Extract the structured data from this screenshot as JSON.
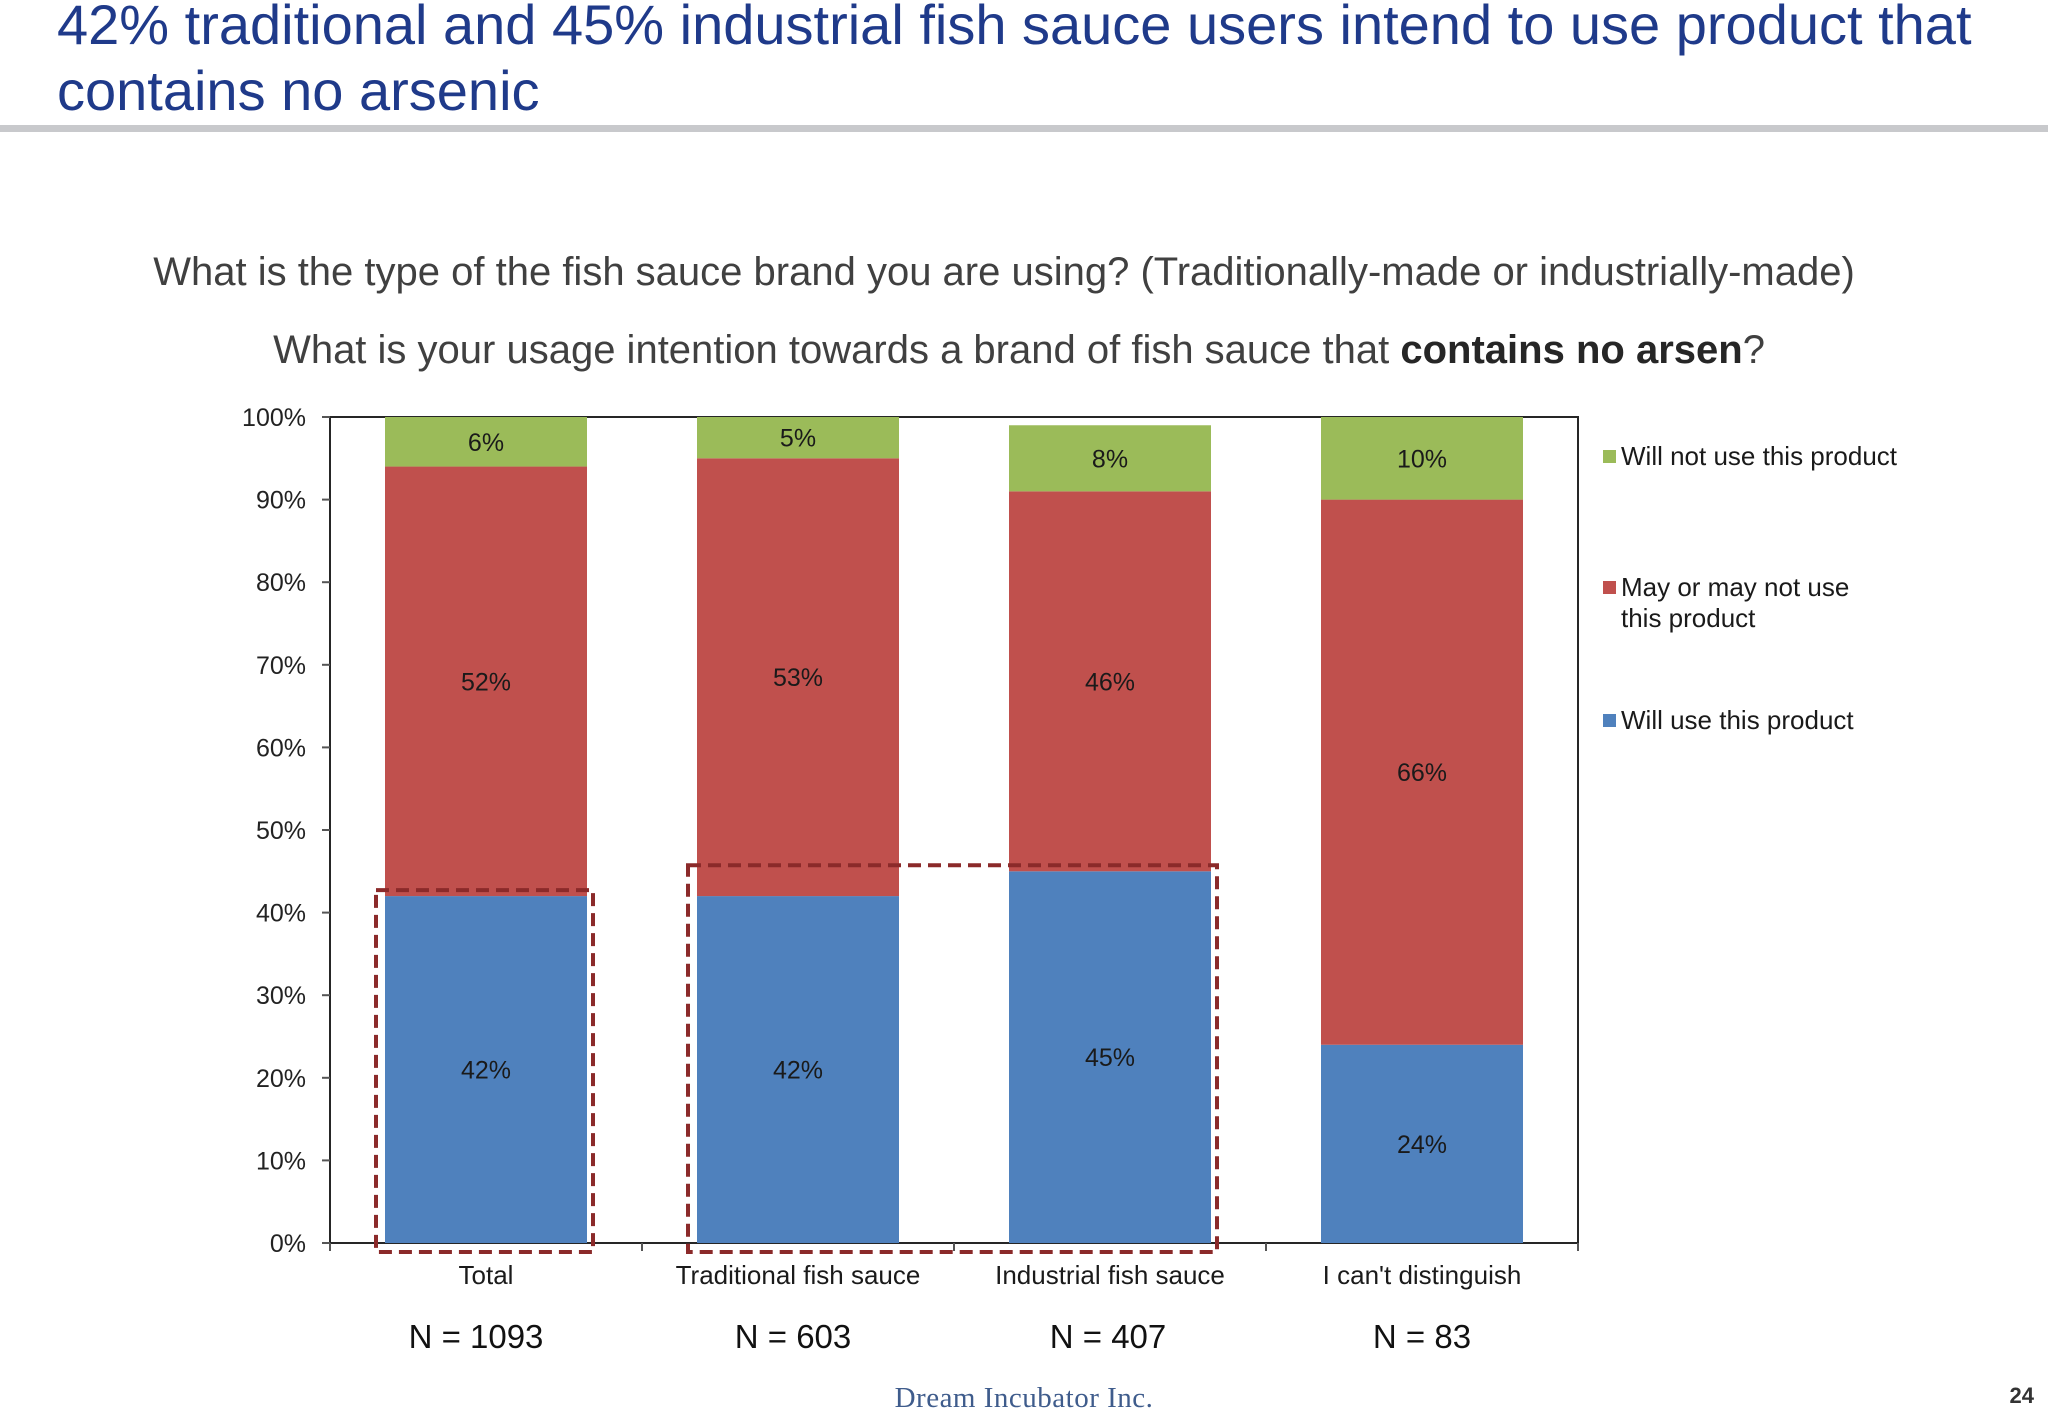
{
  "slide": {
    "title": "42% traditional and 45% industrial fish sauce users intend to use product that contains no arsenic",
    "question1": "What is the type of the fish sauce brand you are using? (Traditionally-made or industrially-made)",
    "question2_prefix": "What is your usage intention towards a brand of fish sauce that ",
    "question2_bold": "contains no arsen",
    "question2_suffix": "?",
    "footer_brand": "Dream Incubator Inc.",
    "page_number": "24"
  },
  "chart_data": {
    "type": "bar",
    "stacked": true,
    "categories": [
      "Total",
      "Traditional fish sauce",
      "Industrial fish sauce",
      "I can't distinguish"
    ],
    "series": [
      {
        "name": "Will use this product",
        "color": "#4F81BD",
        "values": [
          42,
          42,
          45,
          24
        ],
        "labels": [
          "42%",
          "42%",
          "45%",
          "24%"
        ]
      },
      {
        "name": "May or may not use this product",
        "color": "#C0504D",
        "values": [
          52,
          53,
          46,
          66
        ],
        "labels": [
          "52%",
          "53%",
          "46%",
          "66%"
        ]
      },
      {
        "name": "Will not use this product",
        "color": "#9BBB59",
        "values": [
          6,
          5,
          8,
          10
        ],
        "labels": [
          "6%",
          "5%",
          "8%",
          "10%"
        ]
      }
    ],
    "legend_order": [
      "Will not use this product",
      "May or may not use this product",
      "Will use this product"
    ],
    "legend_position": "right",
    "ylim": [
      0,
      100
    ],
    "ytick_labels": [
      "0%",
      "10%",
      "20%",
      "30%",
      "40%",
      "50%",
      "60%",
      "70%",
      "80%",
      "90%",
      "100%"
    ],
    "sample_sizes": [
      "N = 1093",
      "N = 603",
      "N = 407",
      "N = 83"
    ],
    "highlight_color": "#8B2A2A",
    "highlighted_groups": [
      [
        "Total"
      ],
      [
        "Traditional fish sauce",
        "Industrial fish sauce"
      ]
    ],
    "grid": false
  }
}
